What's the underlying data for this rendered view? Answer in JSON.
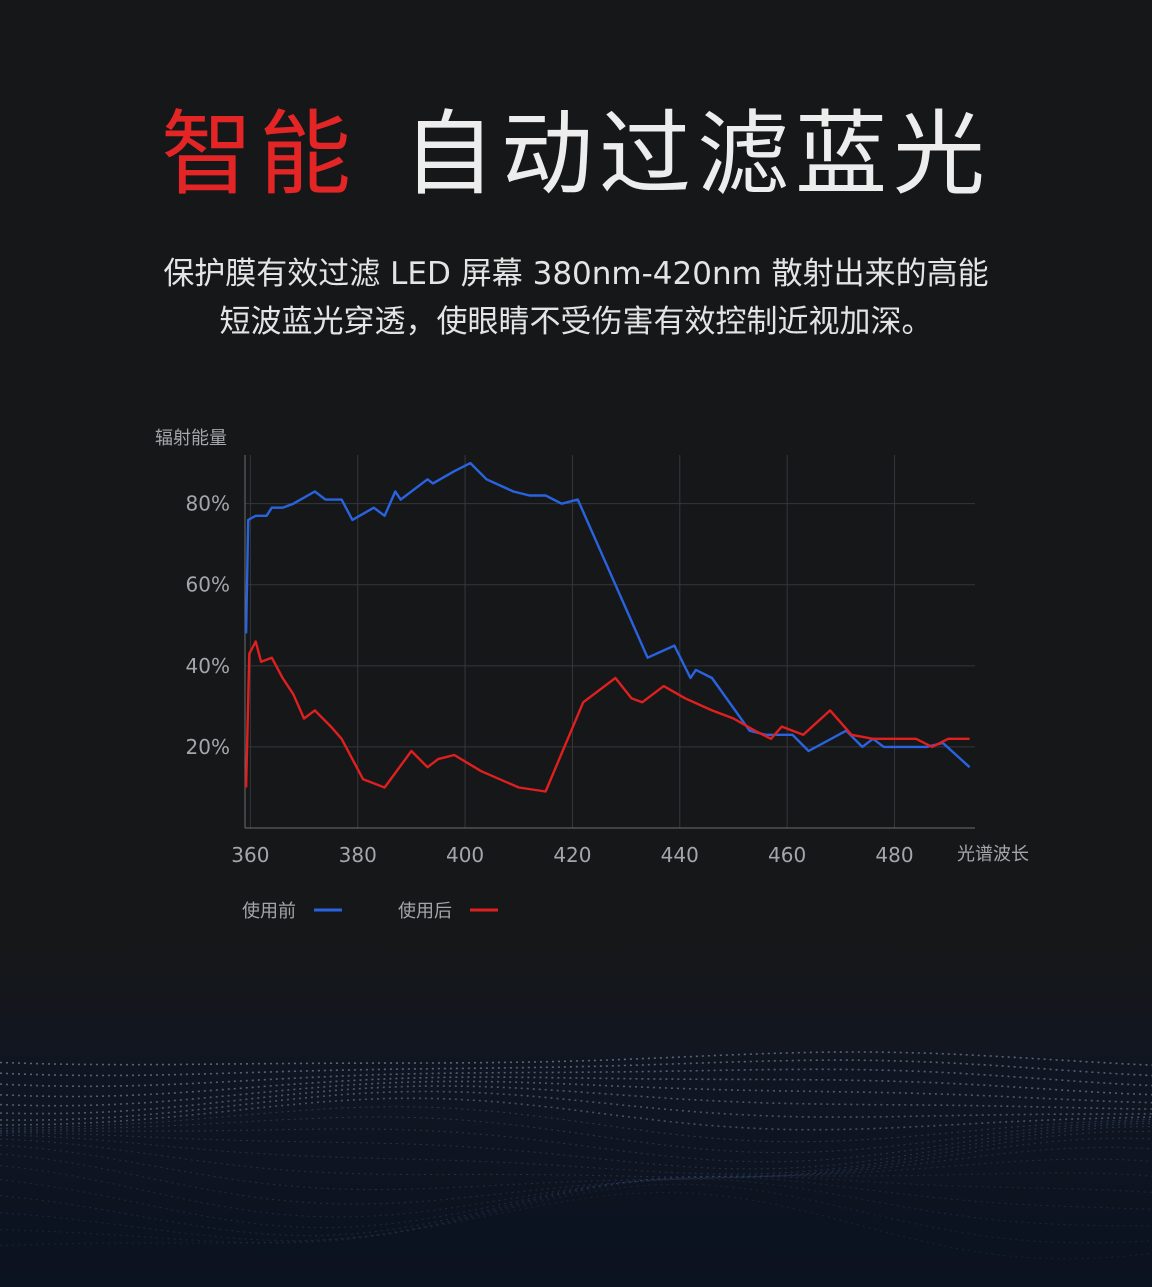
{
  "headline": {
    "accent": "智能",
    "main": "自动过滤蓝光"
  },
  "subtitle": {
    "line1": "保护膜有效过滤 LED 屏幕 380nm-420nm 散射出来的高能",
    "line2": "短波蓝光穿透，使眼睛不受伤害有效控制近视加深。"
  },
  "colors": {
    "accent": "#e32525",
    "before": "#2a63e0",
    "after": "#e01f1f",
    "background": "#161719"
  },
  "chart_data": {
    "type": "line",
    "ylabel": "辐射能量",
    "xlabel": "光谱波长",
    "xlim": [
      359,
      495
    ],
    "ylim": [
      0,
      92
    ],
    "xticks": [
      360,
      380,
      400,
      420,
      440,
      460,
      480
    ],
    "xtick_labels": [
      "360",
      "380",
      "400",
      "420",
      "440",
      "460",
      "480"
    ],
    "yticks": [
      20,
      40,
      60,
      80
    ],
    "ytick_labels": [
      "20%",
      "40%",
      "60%",
      "80%"
    ],
    "grid": true,
    "legend_position": "bottom-left",
    "series": [
      {
        "name": "使用前",
        "color": "#2a63e0",
        "points": [
          [
            359.2,
            48
          ],
          [
            359.6,
            76
          ],
          [
            361,
            77
          ],
          [
            363,
            77
          ],
          [
            364,
            79
          ],
          [
            366,
            79
          ],
          [
            368,
            80
          ],
          [
            372,
            83
          ],
          [
            374,
            81
          ],
          [
            377,
            81
          ],
          [
            379,
            76
          ],
          [
            383,
            79
          ],
          [
            385,
            77
          ],
          [
            387,
            83
          ],
          [
            388,
            81
          ],
          [
            393,
            86
          ],
          [
            394,
            85
          ],
          [
            398,
            88
          ],
          [
            401,
            90
          ],
          [
            404,
            86
          ],
          [
            409,
            83
          ],
          [
            412,
            82
          ],
          [
            415,
            82
          ],
          [
            418,
            80
          ],
          [
            421,
            81
          ],
          [
            428,
            60
          ],
          [
            434,
            42
          ],
          [
            439,
            45
          ],
          [
            442,
            37
          ],
          [
            443,
            39
          ],
          [
            446,
            37
          ],
          [
            453,
            24
          ],
          [
            456,
            23
          ],
          [
            461,
            23
          ],
          [
            464,
            19
          ],
          [
            471,
            24
          ],
          [
            474,
            20
          ],
          [
            476,
            22
          ],
          [
            478,
            20
          ],
          [
            481,
            20
          ],
          [
            486,
            20
          ],
          [
            489,
            21
          ],
          [
            494,
            15
          ]
        ]
      },
      {
        "name": "使用后",
        "color": "#e01f1f",
        "points": [
          [
            359.2,
            10
          ],
          [
            359.8,
            43
          ],
          [
            361,
            46
          ],
          [
            362,
            41
          ],
          [
            364,
            42
          ],
          [
            366,
            37
          ],
          [
            368,
            33
          ],
          [
            370,
            27
          ],
          [
            372,
            29
          ],
          [
            375,
            25
          ],
          [
            377,
            22
          ],
          [
            381,
            12
          ],
          [
            385,
            10
          ],
          [
            390,
            19
          ],
          [
            393,
            15
          ],
          [
            395,
            17
          ],
          [
            398,
            18
          ],
          [
            403,
            14
          ],
          [
            410,
            10
          ],
          [
            415,
            9
          ],
          [
            422,
            31
          ],
          [
            428,
            37
          ],
          [
            431,
            32
          ],
          [
            433,
            31
          ],
          [
            437,
            35
          ],
          [
            441,
            32
          ],
          [
            446,
            29
          ],
          [
            450,
            27
          ],
          [
            454,
            24
          ],
          [
            457,
            22
          ],
          [
            459,
            25
          ],
          [
            463,
            23
          ],
          [
            468,
            29
          ],
          [
            472,
            23
          ],
          [
            476,
            22
          ],
          [
            478,
            22
          ],
          [
            484,
            22
          ],
          [
            487,
            20
          ],
          [
            490,
            22
          ],
          [
            494,
            22
          ]
        ]
      }
    ]
  }
}
